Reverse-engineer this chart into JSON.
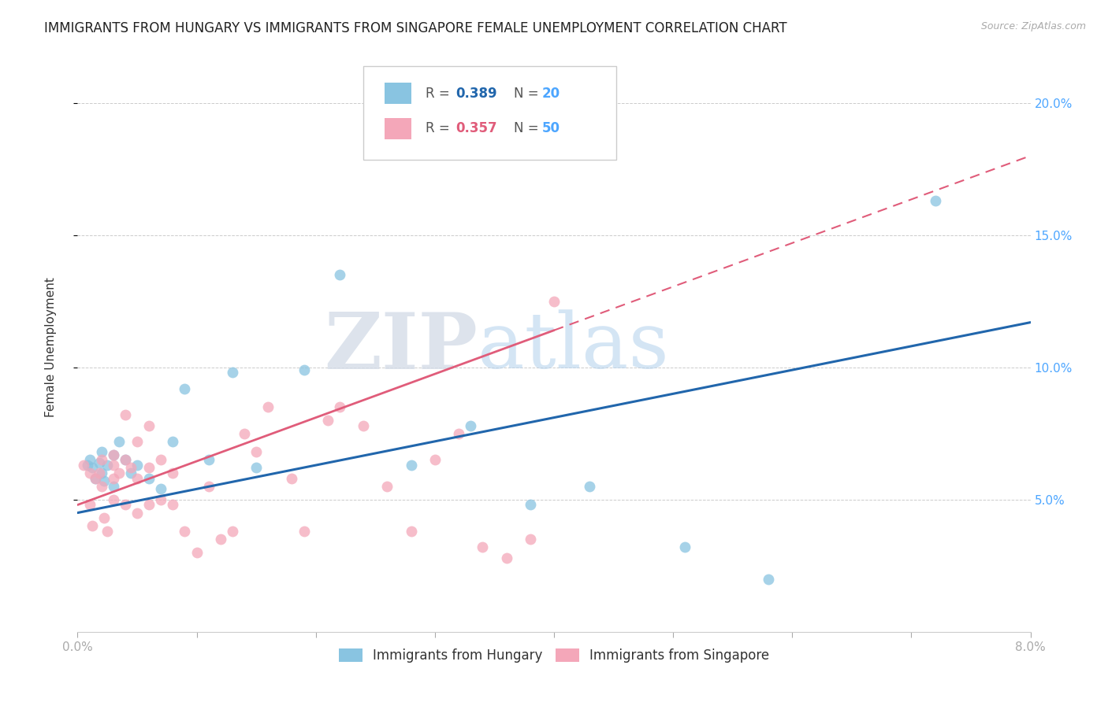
{
  "title": "IMMIGRANTS FROM HUNGARY VS IMMIGRANTS FROM SINGAPORE FEMALE UNEMPLOYMENT CORRELATION CHART",
  "source": "Source: ZipAtlas.com",
  "ylabel": "Female Unemployment",
  "xlim": [
    0.0,
    0.08
  ],
  "ylim": [
    0.0,
    0.215
  ],
  "yticks": [
    0.05,
    0.1,
    0.15,
    0.2
  ],
  "ytick_labels": [
    "5.0%",
    "10.0%",
    "15.0%",
    "20.0%"
  ],
  "hungary_color": "#89c4e1",
  "singapore_color": "#f4a7b9",
  "hungary_line_color": "#2166ac",
  "singapore_line_color": "#e05c7a",
  "watermark_zip": "ZIP",
  "watermark_atlas": "atlas",
  "hungary_x": [
    0.0008,
    0.001,
    0.0012,
    0.0015,
    0.0018,
    0.002,
    0.002,
    0.0022,
    0.0025,
    0.003,
    0.003,
    0.0035,
    0.004,
    0.0045,
    0.005,
    0.006,
    0.007,
    0.008,
    0.009,
    0.011,
    0.013,
    0.015,
    0.019,
    0.022,
    0.028,
    0.033,
    0.038,
    0.043,
    0.051,
    0.058,
    0.072
  ],
  "hungary_y": [
    0.063,
    0.065,
    0.062,
    0.058,
    0.064,
    0.068,
    0.06,
    0.057,
    0.063,
    0.055,
    0.067,
    0.072,
    0.065,
    0.06,
    0.063,
    0.058,
    0.054,
    0.072,
    0.092,
    0.065,
    0.098,
    0.062,
    0.099,
    0.135,
    0.063,
    0.078,
    0.048,
    0.055,
    0.032,
    0.02,
    0.163
  ],
  "singapore_x": [
    0.0005,
    0.001,
    0.001,
    0.0012,
    0.0015,
    0.0018,
    0.002,
    0.002,
    0.0022,
    0.0025,
    0.003,
    0.003,
    0.003,
    0.003,
    0.0035,
    0.004,
    0.004,
    0.004,
    0.0045,
    0.005,
    0.005,
    0.005,
    0.006,
    0.006,
    0.006,
    0.007,
    0.007,
    0.008,
    0.008,
    0.009,
    0.01,
    0.011,
    0.012,
    0.013,
    0.014,
    0.015,
    0.016,
    0.018,
    0.019,
    0.021,
    0.022,
    0.024,
    0.026,
    0.028,
    0.03,
    0.032,
    0.034,
    0.036,
    0.038,
    0.04
  ],
  "singapore_y": [
    0.063,
    0.06,
    0.048,
    0.04,
    0.058,
    0.06,
    0.055,
    0.065,
    0.043,
    0.038,
    0.063,
    0.067,
    0.058,
    0.05,
    0.06,
    0.082,
    0.065,
    0.048,
    0.062,
    0.072,
    0.058,
    0.045,
    0.078,
    0.062,
    0.048,
    0.065,
    0.05,
    0.06,
    0.048,
    0.038,
    0.03,
    0.055,
    0.035,
    0.038,
    0.075,
    0.068,
    0.085,
    0.058,
    0.038,
    0.08,
    0.085,
    0.078,
    0.055,
    0.038,
    0.065,
    0.075,
    0.032,
    0.028,
    0.035,
    0.125
  ],
  "background_color": "#ffffff",
  "grid_color": "#cccccc",
  "right_axis_color": "#4da6ff",
  "title_fontsize": 12,
  "axis_label_fontsize": 11,
  "tick_fontsize": 11,
  "marker_size": 100,
  "hungary_intercept": 0.045,
  "hungary_slope": 0.9,
  "singapore_intercept": 0.048,
  "singapore_slope": 1.65
}
